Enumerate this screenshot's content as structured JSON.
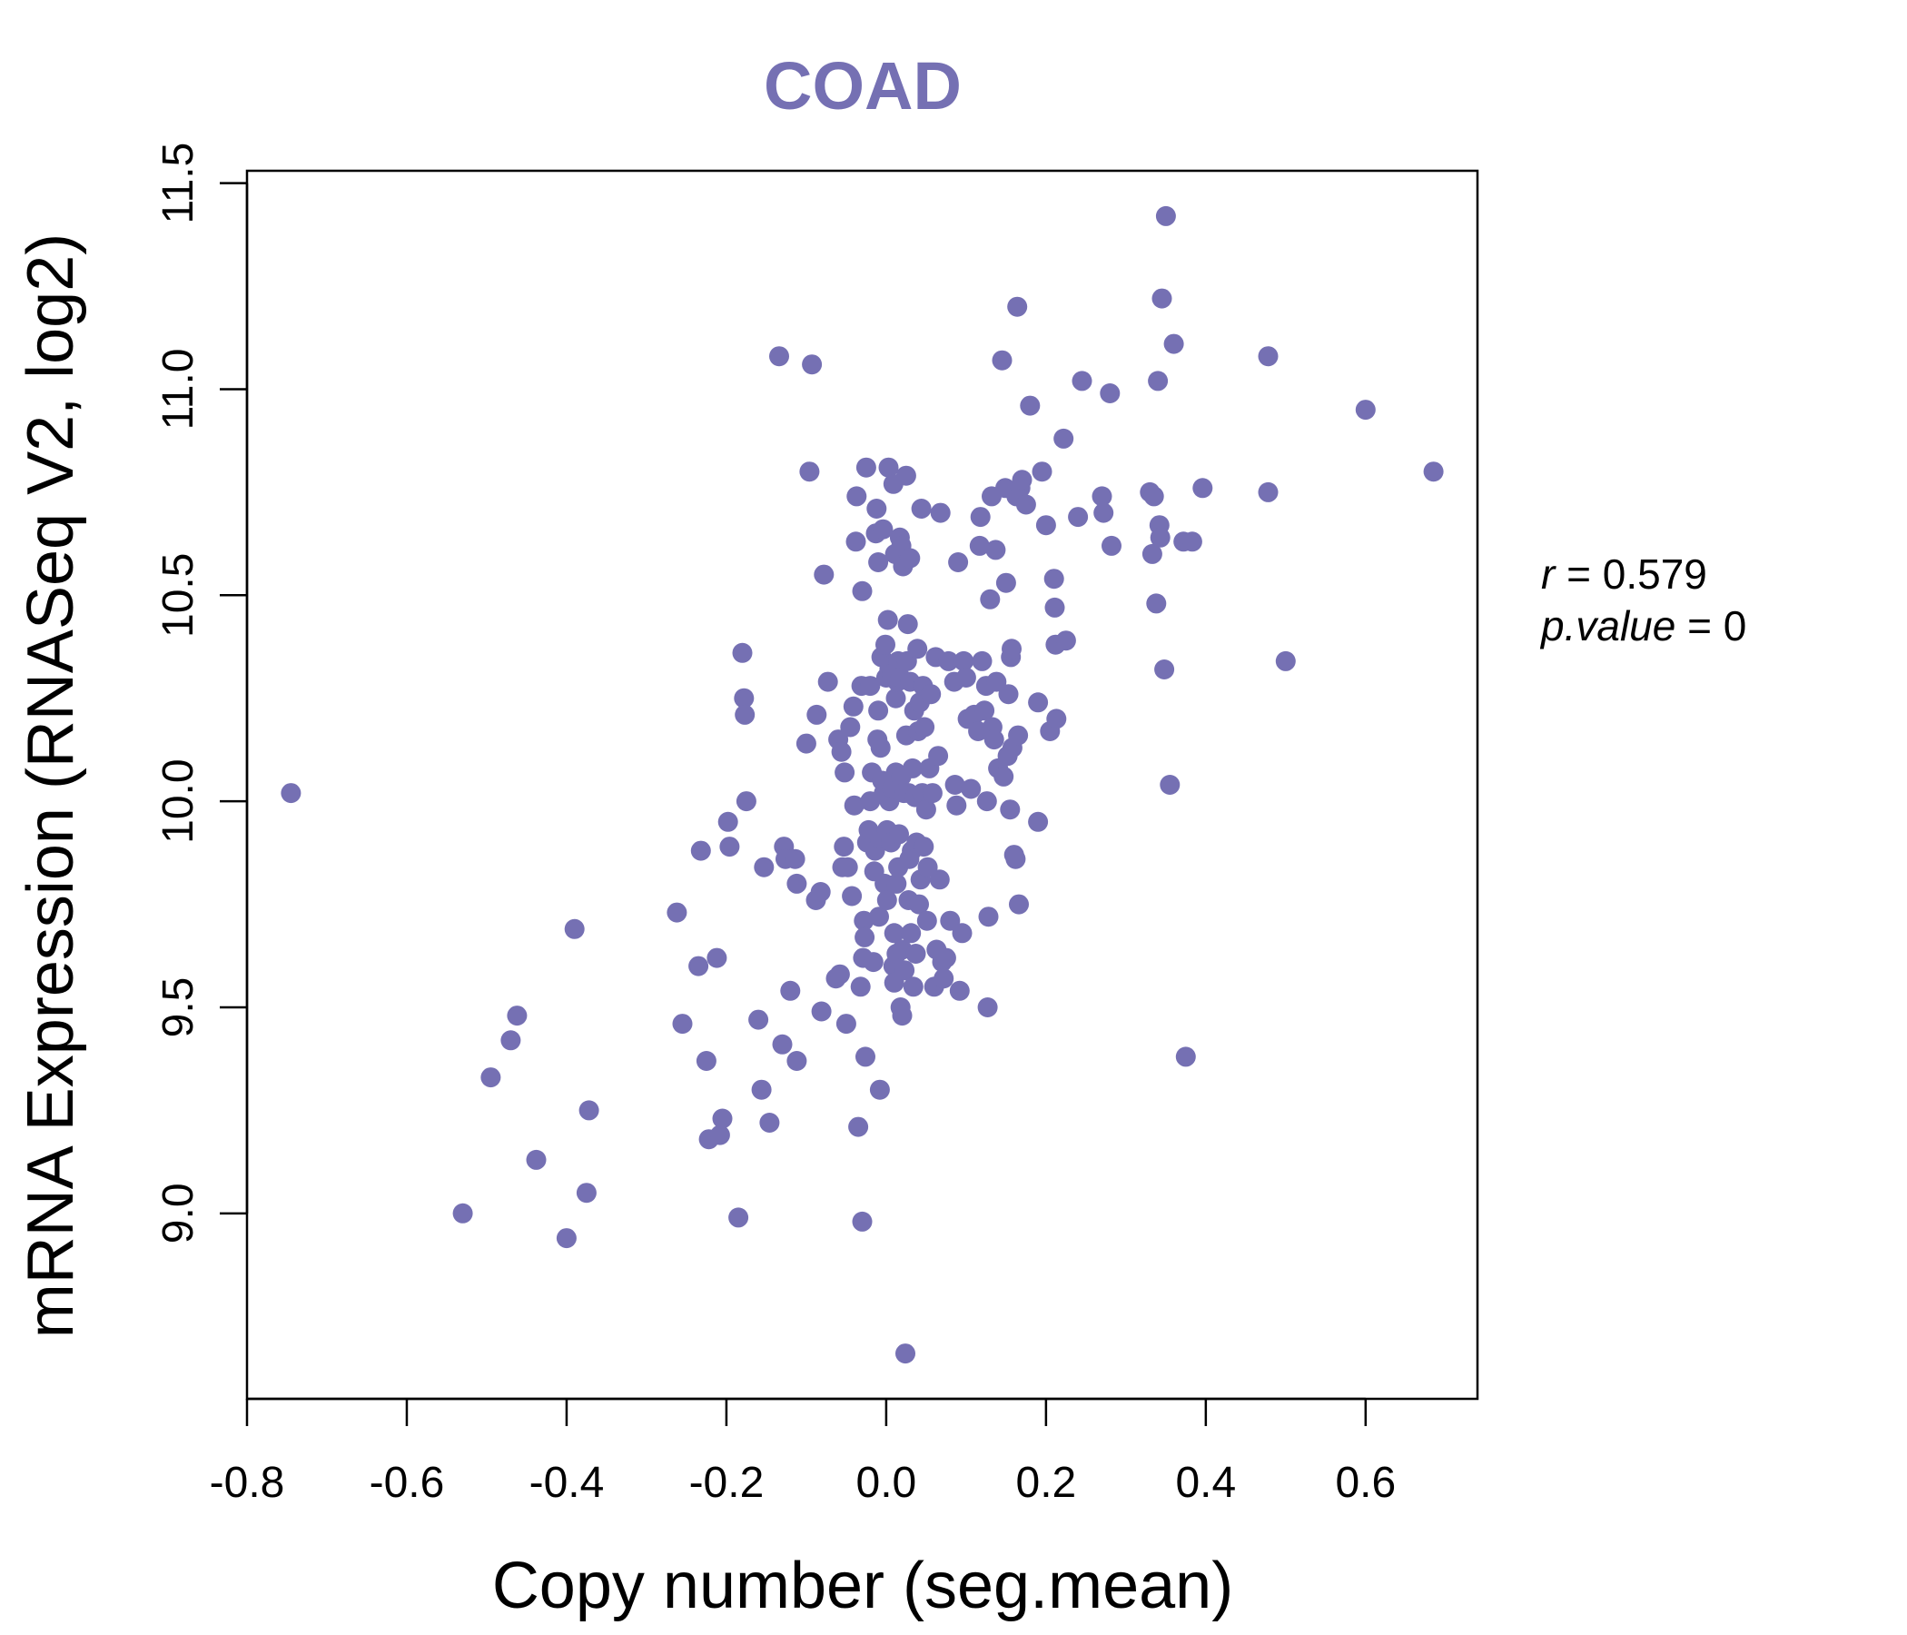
{
  "chart_data": {
    "type": "scatter",
    "title": "COAD",
    "xlabel": "Copy number (seg.mean)",
    "ylabel": "mRNA Expression (RNASeq V2, log2)",
    "xlim": [
      -0.8,
      0.74
    ],
    "ylim": [
      8.55,
      11.53
    ],
    "x_ticks": [
      -0.8,
      -0.6,
      -0.4,
      -0.2,
      0.0,
      0.2,
      0.4,
      0.6
    ],
    "x_tick_labels": [
      "-0.8",
      "-0.6",
      "-0.4",
      "-0.2",
      "0.0",
      "0.2",
      "0.4",
      "0.6"
    ],
    "y_ticks": [
      9.0,
      9.5,
      10.0,
      10.5,
      11.0,
      11.5
    ],
    "y_tick_labels": [
      "9.0",
      "9.5",
      "10.0",
      "10.5",
      "11.0",
      "11.5"
    ],
    "grid": false,
    "point_color": "#7570b3",
    "annotations": {
      "r_symbol": "r",
      "r_value": "0.579",
      "p_symbol": "p.value",
      "p_value": "0"
    },
    "points": [
      [
        -0.745,
        10.02
      ],
      [
        -0.53,
        9.0
      ],
      [
        -0.495,
        9.33
      ],
      [
        -0.47,
        9.42
      ],
      [
        -0.462,
        9.48
      ],
      [
        -0.438,
        9.13
      ],
      [
        -0.4,
        8.94
      ],
      [
        -0.39,
        9.69
      ],
      [
        -0.375,
        9.05
      ],
      [
        -0.372,
        9.25
      ],
      [
        -0.262,
        9.73
      ],
      [
        -0.255,
        9.46
      ],
      [
        -0.235,
        9.6
      ],
      [
        -0.232,
        9.88
      ],
      [
        -0.225,
        9.37
      ],
      [
        -0.222,
        9.18
      ],
      [
        -0.212,
        9.62
      ],
      [
        -0.208,
        9.19
      ],
      [
        -0.205,
        9.23
      ],
      [
        -0.198,
        9.95
      ],
      [
        -0.196,
        9.89
      ],
      [
        -0.185,
        8.99
      ],
      [
        -0.18,
        10.36
      ],
      [
        -0.178,
        10.25
      ],
      [
        -0.177,
        10.21
      ],
      [
        -0.175,
        10.0
      ],
      [
        -0.16,
        9.47
      ],
      [
        -0.156,
        9.3
      ],
      [
        -0.153,
        9.84
      ],
      [
        -0.146,
        9.22
      ],
      [
        -0.134,
        11.08
      ],
      [
        -0.13,
        9.41
      ],
      [
        -0.128,
        9.89
      ],
      [
        -0.126,
        9.86
      ],
      [
        -0.12,
        9.54
      ],
      [
        -0.114,
        9.86
      ],
      [
        -0.112,
        9.8
      ],
      [
        -0.112,
        9.37
      ],
      [
        -0.1,
        10.14
      ],
      [
        -0.096,
        10.8
      ],
      [
        -0.093,
        11.06
      ],
      [
        -0.088,
        9.76
      ],
      [
        -0.087,
        10.21
      ],
      [
        -0.082,
        9.78
      ],
      [
        -0.081,
        9.49
      ],
      [
        -0.078,
        10.55
      ],
      [
        -0.073,
        10.29
      ],
      [
        -0.063,
        9.57
      ],
      [
        -0.06,
        10.15
      ],
      [
        -0.058,
        9.58
      ],
      [
        -0.056,
        10.12
      ],
      [
        -0.055,
        9.84
      ],
      [
        -0.053,
        9.89
      ],
      [
        -0.052,
        10.07
      ],
      [
        -0.05,
        9.46
      ],
      [
        -0.048,
        9.84
      ],
      [
        -0.045,
        10.18
      ],
      [
        -0.043,
        9.77
      ],
      [
        -0.041,
        10.23
      ],
      [
        -0.04,
        9.99
      ],
      [
        -0.038,
        10.63
      ],
      [
        -0.037,
        10.74
      ],
      [
        -0.035,
        9.21
      ],
      [
        -0.032,
        9.55
      ],
      [
        -0.031,
        10.28
      ],
      [
        -0.03,
        10.51
      ],
      [
        -0.03,
        8.98
      ],
      [
        -0.029,
        9.62
      ],
      [
        -0.028,
        9.71
      ],
      [
        -0.027,
        9.67
      ],
      [
        -0.026,
        9.38
      ],
      [
        -0.025,
        10.81
      ],
      [
        -0.024,
        9.9
      ],
      [
        -0.022,
        9.93
      ],
      [
        -0.02,
        10.28
      ],
      [
        -0.02,
        10.0
      ],
      [
        -0.018,
        10.07
      ],
      [
        -0.016,
        9.61
      ],
      [
        -0.015,
        9.83
      ],
      [
        -0.014,
        9.88
      ],
      [
        -0.013,
        10.65
      ],
      [
        -0.012,
        10.71
      ],
      [
        -0.011,
        10.15
      ],
      [
        -0.01,
        10.58
      ],
      [
        -0.01,
        10.22
      ],
      [
        -0.009,
        9.72
      ],
      [
        -0.008,
        9.3
      ],
      [
        -0.008,
        9.91
      ],
      [
        -0.007,
        10.13
      ],
      [
        -0.006,
        10.35
      ],
      [
        -0.005,
        10.05
      ],
      [
        -0.004,
        10.66
      ],
      [
        -0.003,
        10.02
      ],
      [
        -0.002,
        9.8
      ],
      [
        -0.001,
        10.38
      ],
      [
        0.0,
        10.3
      ],
      [
        0.001,
        9.93
      ],
      [
        0.001,
        9.76
      ],
      [
        0.002,
        10.44
      ],
      [
        0.003,
        10.81
      ],
      [
        0.004,
        10.32
      ],
      [
        0.004,
        10.0
      ],
      [
        0.005,
        10.33
      ],
      [
        0.006,
        9.9
      ],
      [
        0.007,
        10.31
      ],
      [
        0.008,
        10.03
      ],
      [
        0.009,
        10.77
      ],
      [
        0.009,
        9.6
      ],
      [
        0.01,
        9.68
      ],
      [
        0.01,
        9.56
      ],
      [
        0.011,
        10.6
      ],
      [
        0.012,
        10.25
      ],
      [
        0.012,
        10.07
      ],
      [
        0.013,
        9.63
      ],
      [
        0.013,
        9.8
      ],
      [
        0.014,
        10.29
      ],
      [
        0.015,
        10.34
      ],
      [
        0.015,
        9.84
      ],
      [
        0.016,
        9.92
      ],
      [
        0.017,
        10.64
      ],
      [
        0.018,
        10.3
      ],
      [
        0.018,
        9.5
      ],
      [
        0.019,
        10.62
      ],
      [
        0.019,
        10.06
      ],
      [
        0.02,
        9.64
      ],
      [
        0.02,
        9.48
      ],
      [
        0.021,
        10.57
      ],
      [
        0.022,
        10.02
      ],
      [
        0.023,
        9.59
      ],
      [
        0.024,
        8.66
      ],
      [
        0.025,
        10.79
      ],
      [
        0.025,
        10.16
      ],
      [
        0.026,
        10.34
      ],
      [
        0.027,
        10.43
      ],
      [
        0.028,
        10.02
      ],
      [
        0.028,
        9.76
      ],
      [
        0.029,
        9.86
      ],
      [
        0.03,
        10.59
      ],
      [
        0.03,
        10.29
      ],
      [
        0.031,
        9.68
      ],
      [
        0.032,
        9.88
      ],
      [
        0.033,
        10.08
      ],
      [
        0.034,
        9.55
      ],
      [
        0.035,
        10.22
      ],
      [
        0.036,
        10.01
      ],
      [
        0.037,
        9.63
      ],
      [
        0.038,
        9.9
      ],
      [
        0.039,
        10.37
      ],
      [
        0.04,
        10.17
      ],
      [
        0.041,
        9.75
      ],
      [
        0.042,
        10.24
      ],
      [
        0.043,
        9.81
      ],
      [
        0.044,
        10.71
      ],
      [
        0.045,
        10.02
      ],
      [
        0.046,
        10.28
      ],
      [
        0.047,
        9.89
      ],
      [
        0.048,
        10.18
      ],
      [
        0.05,
        9.98
      ],
      [
        0.051,
        9.71
      ],
      [
        0.052,
        9.84
      ],
      [
        0.054,
        10.08
      ],
      [
        0.056,
        10.26
      ],
      [
        0.058,
        10.02
      ],
      [
        0.06,
        9.55
      ],
      [
        0.062,
        10.35
      ],
      [
        0.063,
        9.64
      ],
      [
        0.065,
        10.11
      ],
      [
        0.067,
        9.81
      ],
      [
        0.068,
        10.7
      ],
      [
        0.07,
        9.61
      ],
      [
        0.072,
        9.57
      ],
      [
        0.075,
        9.62
      ],
      [
        0.078,
        10.34
      ],
      [
        0.08,
        9.71
      ],
      [
        0.085,
        10.29
      ],
      [
        0.086,
        10.04
      ],
      [
        0.088,
        9.99
      ],
      [
        0.09,
        10.58
      ],
      [
        0.092,
        9.54
      ],
      [
        0.095,
        9.68
      ],
      [
        0.097,
        10.34
      ],
      [
        0.1,
        10.3
      ],
      [
        0.102,
        10.2
      ],
      [
        0.106,
        10.03
      ],
      [
        0.11,
        10.21
      ],
      [
        0.115,
        10.17
      ],
      [
        0.117,
        10.62
      ],
      [
        0.118,
        10.69
      ],
      [
        0.12,
        10.34
      ],
      [
        0.123,
        10.22
      ],
      [
        0.125,
        10.28
      ],
      [
        0.126,
        10.0
      ],
      [
        0.127,
        9.5
      ],
      [
        0.128,
        9.72
      ],
      [
        0.13,
        10.49
      ],
      [
        0.132,
        10.74
      ],
      [
        0.133,
        10.18
      ],
      [
        0.135,
        10.15
      ],
      [
        0.137,
        10.61
      ],
      [
        0.138,
        10.29
      ],
      [
        0.14,
        10.08
      ],
      [
        0.145,
        11.07
      ],
      [
        0.147,
        10.06
      ],
      [
        0.149,
        10.76
      ],
      [
        0.15,
        10.53
      ],
      [
        0.152,
        10.11
      ],
      [
        0.153,
        10.26
      ],
      [
        0.155,
        9.98
      ],
      [
        0.156,
        10.35
      ],
      [
        0.157,
        10.37
      ],
      [
        0.158,
        10.13
      ],
      [
        0.16,
        9.87
      ],
      [
        0.162,
        9.86
      ],
      [
        0.163,
        10.74
      ],
      [
        0.164,
        11.2
      ],
      [
        0.165,
        10.16
      ],
      [
        0.166,
        9.75
      ],
      [
        0.168,
        10.76
      ],
      [
        0.17,
        10.78
      ],
      [
        0.175,
        10.72
      ],
      [
        0.18,
        10.96
      ],
      [
        0.19,
        9.95
      ],
      [
        0.19,
        10.24
      ],
      [
        0.195,
        10.8
      ],
      [
        0.2,
        10.67
      ],
      [
        0.205,
        10.17
      ],
      [
        0.21,
        10.54
      ],
      [
        0.211,
        10.47
      ],
      [
        0.212,
        10.38
      ],
      [
        0.213,
        10.2
      ],
      [
        0.222,
        10.88
      ],
      [
        0.225,
        10.39
      ],
      [
        0.24,
        10.69
      ],
      [
        0.245,
        11.02
      ],
      [
        0.27,
        10.74
      ],
      [
        0.272,
        10.7
      ],
      [
        0.28,
        10.99
      ],
      [
        0.282,
        10.62
      ],
      [
        0.33,
        10.75
      ],
      [
        0.333,
        10.6
      ],
      [
        0.335,
        10.74
      ],
      [
        0.338,
        10.48
      ],
      [
        0.34,
        11.02
      ],
      [
        0.342,
        10.67
      ],
      [
        0.343,
        10.64
      ],
      [
        0.345,
        11.22
      ],
      [
        0.348,
        10.32
      ],
      [
        0.35,
        11.42
      ],
      [
        0.355,
        10.04
      ],
      [
        0.36,
        11.11
      ],
      [
        0.372,
        10.63
      ],
      [
        0.375,
        9.38
      ],
      [
        0.383,
        10.63
      ],
      [
        0.396,
        10.76
      ],
      [
        0.478,
        11.08
      ],
      [
        0.478,
        10.75
      ],
      [
        0.5,
        10.34
      ],
      [
        0.6,
        10.95
      ],
      [
        0.685,
        10.8
      ]
    ]
  }
}
